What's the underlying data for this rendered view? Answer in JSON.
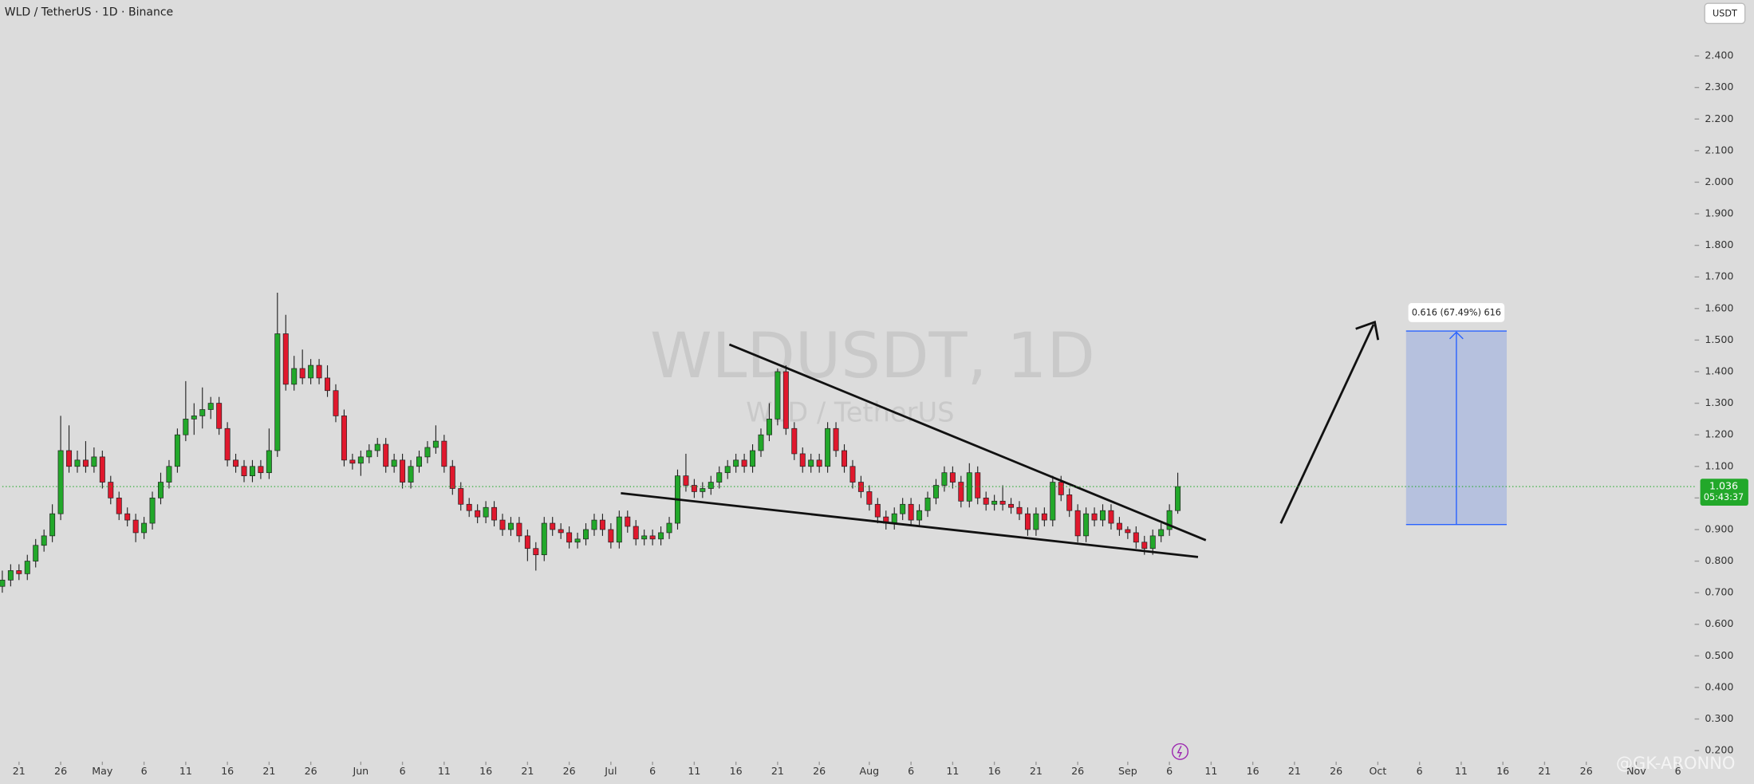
{
  "chart_data": {
    "type": "candlestick",
    "title": "WLD / TetherUS · 1D · Binance",
    "watermark_symbol": "WLDUSDT, 1D",
    "watermark_name": "WLD / TetherUS",
    "annotations": [
      "0.616 (67.49%) 616"
    ],
    "currency": "USDT",
    "last_price": 1.036,
    "countdown": "05:43:37",
    "credit": "@GK-ARONNO",
    "up_color": "#22a82a",
    "down_color": "#e0182d",
    "grid": false,
    "x": [
      "Apr 19",
      "Apr 20",
      "Apr 21",
      "Apr 22",
      "Apr 23",
      "Apr 24",
      "Apr 25",
      "Apr 26",
      "Apr 27",
      "Apr 28",
      "Apr 29",
      "Apr 30",
      "May 1",
      "May 2",
      "May 3",
      "May 4",
      "May 5",
      "May 6",
      "May 7",
      "May 8",
      "May 9",
      "May 10",
      "May 11",
      "May 12",
      "May 13",
      "May 14",
      "May 15",
      "May 16",
      "May 17",
      "May 18",
      "May 19",
      "May 20",
      "May 21",
      "May 22",
      "May 23",
      "May 24",
      "May 25",
      "May 26",
      "May 27",
      "May 28",
      "May 29",
      "May 30",
      "May 31",
      "Jun 1",
      "Jun 2",
      "Jun 3",
      "Jun 4",
      "Jun 5",
      "Jun 6",
      "Jun 7",
      "Jun 8",
      "Jun 9",
      "Jun 10",
      "Jun 11",
      "Jun 12",
      "Jun 13",
      "Jun 14",
      "Jun 15",
      "Jun 16",
      "Jun 17",
      "Jun 18",
      "Jun 19",
      "Jun 20",
      "Jun 21",
      "Jun 22",
      "Jun 23",
      "Jun 24",
      "Jun 25",
      "Jun 26",
      "Jun 27",
      "Jun 28",
      "Jun 29",
      "Jun 30",
      "Jul 1",
      "Jul 2",
      "Jul 3",
      "Jul 4",
      "Jul 5",
      "Jul 6",
      "Jul 7",
      "Jul 8",
      "Jul 9",
      "Jul 10",
      "Jul 11",
      "Jul 12",
      "Jul 13",
      "Jul 14",
      "Jul 15",
      "Jul 16",
      "Jul 17",
      "Jul 18",
      "Jul 19",
      "Jul 20",
      "Jul 21",
      "Jul 22",
      "Jul 23",
      "Jul 24",
      "Jul 25",
      "Jul 26",
      "Jul 27",
      "Jul 28",
      "Jul 29",
      "Jul 30",
      "Jul 31",
      "Aug 1",
      "Aug 2",
      "Aug 3",
      "Aug 4",
      "Aug 5",
      "Aug 6",
      "Aug 7",
      "Aug 8",
      "Aug 9",
      "Aug 10",
      "Aug 11",
      "Aug 12",
      "Aug 13",
      "Aug 14",
      "Aug 15",
      "Aug 16",
      "Aug 17",
      "Aug 18",
      "Aug 19",
      "Aug 20",
      "Aug 21",
      "Aug 22",
      "Aug 23",
      "Aug 24",
      "Aug 25",
      "Aug 26",
      "Aug 27",
      "Aug 28",
      "Aug 29",
      "Aug 30",
      "Aug 31",
      "Sep 1",
      "Sep 2",
      "Sep 3",
      "Sep 4",
      "Sep 5",
      "Sep 6",
      "Sep 7"
    ],
    "ohlc": [
      [
        0.72,
        0.77,
        0.7,
        0.74
      ],
      [
        0.74,
        0.79,
        0.72,
        0.77
      ],
      [
        0.77,
        0.79,
        0.74,
        0.76
      ],
      [
        0.76,
        0.82,
        0.74,
        0.8
      ],
      [
        0.8,
        0.87,
        0.78,
        0.85
      ],
      [
        0.85,
        0.9,
        0.83,
        0.88
      ],
      [
        0.88,
        0.98,
        0.86,
        0.95
      ],
      [
        0.95,
        1.26,
        0.93,
        1.15
      ],
      [
        1.15,
        1.23,
        1.08,
        1.1
      ],
      [
        1.1,
        1.15,
        1.08,
        1.12
      ],
      [
        1.12,
        1.18,
        1.08,
        1.1
      ],
      [
        1.1,
        1.16,
        1.08,
        1.13
      ],
      [
        1.13,
        1.15,
        1.03,
        1.05
      ],
      [
        1.05,
        1.07,
        0.98,
        1.0
      ],
      [
        1.0,
        1.02,
        0.93,
        0.95
      ],
      [
        0.95,
        0.97,
        0.91,
        0.93
      ],
      [
        0.93,
        0.95,
        0.86,
        0.89
      ],
      [
        0.89,
        0.94,
        0.87,
        0.92
      ],
      [
        0.92,
        1.02,
        0.9,
        1.0
      ],
      [
        1.0,
        1.08,
        0.98,
        1.05
      ],
      [
        1.05,
        1.12,
        1.03,
        1.1
      ],
      [
        1.1,
        1.22,
        1.08,
        1.2
      ],
      [
        1.2,
        1.37,
        1.18,
        1.25
      ],
      [
        1.25,
        1.3,
        1.2,
        1.26
      ],
      [
        1.26,
        1.35,
        1.22,
        1.28
      ],
      [
        1.28,
        1.32,
        1.25,
        1.3
      ],
      [
        1.3,
        1.32,
        1.2,
        1.22
      ],
      [
        1.22,
        1.24,
        1.1,
        1.12
      ],
      [
        1.12,
        1.14,
        1.08,
        1.1
      ],
      [
        1.1,
        1.12,
        1.05,
        1.07
      ],
      [
        1.07,
        1.12,
        1.05,
        1.1
      ],
      [
        1.1,
        1.12,
        1.06,
        1.08
      ],
      [
        1.08,
        1.22,
        1.06,
        1.15
      ],
      [
        1.15,
        1.65,
        1.13,
        1.52
      ],
      [
        1.52,
        1.58,
        1.34,
        1.36
      ],
      [
        1.36,
        1.45,
        1.34,
        1.41
      ],
      [
        1.41,
        1.47,
        1.36,
        1.38
      ],
      [
        1.38,
        1.44,
        1.36,
        1.42
      ],
      [
        1.42,
        1.44,
        1.36,
        1.38
      ],
      [
        1.38,
        1.42,
        1.32,
        1.34
      ],
      [
        1.34,
        1.36,
        1.24,
        1.26
      ],
      [
        1.26,
        1.28,
        1.1,
        1.12
      ],
      [
        1.12,
        1.14,
        1.09,
        1.11
      ],
      [
        1.11,
        1.15,
        1.07,
        1.13
      ],
      [
        1.13,
        1.17,
        1.11,
        1.15
      ],
      [
        1.15,
        1.19,
        1.13,
        1.17
      ],
      [
        1.17,
        1.19,
        1.08,
        1.1
      ],
      [
        1.1,
        1.14,
        1.08,
        1.12
      ],
      [
        1.12,
        1.14,
        1.03,
        1.05
      ],
      [
        1.05,
        1.12,
        1.03,
        1.1
      ],
      [
        1.1,
        1.15,
        1.08,
        1.13
      ],
      [
        1.13,
        1.18,
        1.11,
        1.16
      ],
      [
        1.16,
        1.23,
        1.14,
        1.18
      ],
      [
        1.18,
        1.2,
        1.08,
        1.1
      ],
      [
        1.1,
        1.12,
        1.01,
        1.03
      ],
      [
        1.03,
        1.05,
        0.96,
        0.98
      ],
      [
        0.98,
        1.0,
        0.94,
        0.96
      ],
      [
        0.96,
        0.98,
        0.92,
        0.94
      ],
      [
        0.94,
        0.99,
        0.92,
        0.97
      ],
      [
        0.97,
        0.99,
        0.91,
        0.93
      ],
      [
        0.93,
        0.95,
        0.88,
        0.9
      ],
      [
        0.9,
        0.94,
        0.88,
        0.92
      ],
      [
        0.92,
        0.94,
        0.86,
        0.88
      ],
      [
        0.88,
        0.9,
        0.8,
        0.84
      ],
      [
        0.84,
        0.86,
        0.77,
        0.82
      ],
      [
        0.82,
        0.94,
        0.8,
        0.92
      ],
      [
        0.92,
        0.94,
        0.88,
        0.9
      ],
      [
        0.9,
        0.92,
        0.87,
        0.89
      ],
      [
        0.89,
        0.91,
        0.84,
        0.86
      ],
      [
        0.86,
        0.89,
        0.84,
        0.87
      ],
      [
        0.87,
        0.92,
        0.85,
        0.9
      ],
      [
        0.9,
        0.95,
        0.88,
        0.93
      ],
      [
        0.93,
        0.95,
        0.88,
        0.9
      ],
      [
        0.9,
        0.92,
        0.84,
        0.86
      ],
      [
        0.86,
        0.96,
        0.84,
        0.94
      ],
      [
        0.94,
        0.96,
        0.89,
        0.91
      ],
      [
        0.91,
        0.93,
        0.85,
        0.87
      ],
      [
        0.87,
        0.9,
        0.85,
        0.88
      ],
      [
        0.88,
        0.9,
        0.85,
        0.87
      ],
      [
        0.87,
        0.91,
        0.85,
        0.89
      ],
      [
        0.89,
        0.94,
        0.87,
        0.92
      ],
      [
        0.92,
        1.09,
        0.9,
        1.07
      ],
      [
        1.07,
        1.14,
        1.02,
        1.04
      ],
      [
        1.04,
        1.06,
        1.0,
        1.02
      ],
      [
        1.02,
        1.05,
        1.0,
        1.03
      ],
      [
        1.03,
        1.07,
        1.01,
        1.05
      ],
      [
        1.05,
        1.1,
        1.03,
        1.08
      ],
      [
        1.08,
        1.12,
        1.06,
        1.1
      ],
      [
        1.1,
        1.14,
        1.08,
        1.12
      ],
      [
        1.12,
        1.14,
        1.08,
        1.1
      ],
      [
        1.1,
        1.17,
        1.08,
        1.15
      ],
      [
        1.15,
        1.22,
        1.13,
        1.2
      ],
      [
        1.2,
        1.3,
        1.18,
        1.25
      ],
      [
        1.25,
        1.41,
        1.23,
        1.4
      ],
      [
        1.4,
        1.42,
        1.2,
        1.22
      ],
      [
        1.22,
        1.24,
        1.12,
        1.14
      ],
      [
        1.14,
        1.16,
        1.08,
        1.1
      ],
      [
        1.1,
        1.14,
        1.08,
        1.12
      ],
      [
        1.12,
        1.14,
        1.08,
        1.1
      ],
      [
        1.1,
        1.24,
        1.08,
        1.22
      ],
      [
        1.22,
        1.24,
        1.13,
        1.15
      ],
      [
        1.15,
        1.17,
        1.08,
        1.1
      ],
      [
        1.1,
        1.12,
        1.03,
        1.05
      ],
      [
        1.05,
        1.07,
        1.0,
        1.02
      ],
      [
        1.02,
        1.04,
        0.96,
        0.98
      ],
      [
        0.98,
        1.0,
        0.92,
        0.94
      ],
      [
        0.94,
        0.96,
        0.9,
        0.92
      ],
      [
        0.92,
        0.97,
        0.9,
        0.95
      ],
      [
        0.95,
        1.0,
        0.93,
        0.98
      ],
      [
        0.98,
        1.0,
        0.91,
        0.93
      ],
      [
        0.93,
        0.98,
        0.91,
        0.96
      ],
      [
        0.96,
        1.02,
        0.94,
        1.0
      ],
      [
        1.0,
        1.06,
        0.98,
        1.04
      ],
      [
        1.04,
        1.1,
        1.02,
        1.08
      ],
      [
        1.08,
        1.1,
        1.03,
        1.05
      ],
      [
        1.05,
        1.07,
        0.97,
        0.99
      ],
      [
        0.99,
        1.11,
        0.97,
        1.08
      ],
      [
        1.08,
        1.1,
        0.98,
        1.0
      ],
      [
        1.0,
        1.02,
        0.96,
        0.98
      ],
      [
        0.98,
        1.01,
        0.96,
        0.99
      ],
      [
        0.99,
        1.04,
        0.96,
        0.98
      ],
      [
        0.98,
        1.0,
        0.95,
        0.97
      ],
      [
        0.97,
        0.99,
        0.93,
        0.95
      ],
      [
        0.95,
        0.97,
        0.88,
        0.9
      ],
      [
        0.9,
        0.97,
        0.88,
        0.95
      ],
      [
        0.95,
        0.97,
        0.91,
        0.93
      ],
      [
        0.93,
        1.07,
        0.91,
        1.05
      ],
      [
        1.05,
        1.07,
        0.99,
        1.01
      ],
      [
        1.01,
        1.03,
        0.94,
        0.96
      ],
      [
        0.96,
        0.98,
        0.86,
        0.88
      ],
      [
        0.88,
        0.97,
        0.86,
        0.95
      ],
      [
        0.95,
        0.97,
        0.91,
        0.93
      ],
      [
        0.93,
        0.98,
        0.91,
        0.96
      ],
      [
        0.96,
        0.98,
        0.9,
        0.92
      ],
      [
        0.92,
        0.94,
        0.88,
        0.9
      ],
      [
        0.9,
        0.91,
        0.87,
        0.89
      ],
      [
        0.89,
        0.91,
        0.84,
        0.86
      ],
      [
        0.86,
        0.88,
        0.82,
        0.84
      ],
      [
        0.84,
        0.9,
        0.82,
        0.88
      ],
      [
        0.88,
        0.92,
        0.86,
        0.9
      ],
      [
        0.9,
        0.98,
        0.88,
        0.96
      ],
      [
        0.96,
        1.08,
        0.95,
        1.036
      ]
    ],
    "xlim": [
      "Apr 19",
      "Nov 8"
    ],
    "xticks": [
      {
        "value": "Apr 21",
        "label": "21"
      },
      {
        "value": "Apr 26",
        "label": "26"
      },
      {
        "value": "May 1",
        "label": "May"
      },
      {
        "value": "May 6",
        "label": "6"
      },
      {
        "value": "May 11",
        "label": "11"
      },
      {
        "value": "May 16",
        "label": "16"
      },
      {
        "value": "May 21",
        "label": "21"
      },
      {
        "value": "May 26",
        "label": "26"
      },
      {
        "value": "Jun 1",
        "label": "Jun"
      },
      {
        "value": "Jun 6",
        "label": "6"
      },
      {
        "value": "Jun 11",
        "label": "11"
      },
      {
        "value": "Jun 16",
        "label": "16"
      },
      {
        "value": "Jun 21",
        "label": "21"
      },
      {
        "value": "Jun 26",
        "label": "26"
      },
      {
        "value": "Jul 1",
        "label": "Jul"
      },
      {
        "value": "Jul 6",
        "label": "6"
      },
      {
        "value": "Jul 11",
        "label": "11"
      },
      {
        "value": "Jul 16",
        "label": "16"
      },
      {
        "value": "Jul 21",
        "label": "21"
      },
      {
        "value": "Jul 26",
        "label": "26"
      },
      {
        "value": "Aug 1",
        "label": "Aug"
      },
      {
        "value": "Aug 6",
        "label": "6"
      },
      {
        "value": "Aug 11",
        "label": "11"
      },
      {
        "value": "Aug 16",
        "label": "16"
      },
      {
        "value": "Aug 21",
        "label": "21"
      },
      {
        "value": "Aug 26",
        "label": "26"
      },
      {
        "value": "Sep 1",
        "label": "Sep"
      },
      {
        "value": "Sep 6",
        "label": "6"
      },
      {
        "value": "Sep 11",
        "label": "11"
      },
      {
        "value": "Sep 16",
        "label": "16"
      },
      {
        "value": "Sep 21",
        "label": "21"
      },
      {
        "value": "Sep 26",
        "label": "26"
      },
      {
        "value": "Oct 1",
        "label": "Oct"
      },
      {
        "value": "Oct 6",
        "label": "6"
      },
      {
        "value": "Oct 11",
        "label": "11"
      },
      {
        "value": "Oct 16",
        "label": "16"
      },
      {
        "value": "Oct 21",
        "label": "21"
      },
      {
        "value": "Oct 26",
        "label": "26"
      },
      {
        "value": "Nov 1",
        "label": "Nov"
      },
      {
        "value": "Nov 6",
        "label": "6"
      }
    ],
    "ylim": [
      0.165,
      2.577
    ],
    "yticks": [
      {
        "value": 0.2,
        "label": "0.200"
      },
      {
        "value": 0.3,
        "label": "0.300"
      },
      {
        "value": 0.4,
        "label": "0.400"
      },
      {
        "value": 0.5,
        "label": "0.500"
      },
      {
        "value": 0.6,
        "label": "0.600"
      },
      {
        "value": 0.7,
        "label": "0.700"
      },
      {
        "value": 0.8,
        "label": "0.800"
      },
      {
        "value": 0.9,
        "label": "0.900"
      },
      {
        "value": 1.0,
        "label": "1.000"
      },
      {
        "value": 1.1,
        "label": "1.100"
      },
      {
        "value": 1.2,
        "label": "1.200"
      },
      {
        "value": 1.3,
        "label": "1.300"
      },
      {
        "value": 1.4,
        "label": "1.400"
      },
      {
        "value": 1.5,
        "label": "1.500"
      },
      {
        "value": 1.6,
        "label": "1.600"
      },
      {
        "value": 1.7,
        "label": "1.700"
      },
      {
        "value": 1.8,
        "label": "1.800"
      },
      {
        "value": 1.9,
        "label": "1.900"
      },
      {
        "value": 2.0,
        "label": "2.000"
      },
      {
        "value": 2.1,
        "label": "2.100"
      },
      {
        "value": 2.2,
        "label": "2.200"
      },
      {
        "value": 2.3,
        "label": "2.300"
      },
      {
        "value": 2.4,
        "label": "2.400"
      }
    ]
  }
}
